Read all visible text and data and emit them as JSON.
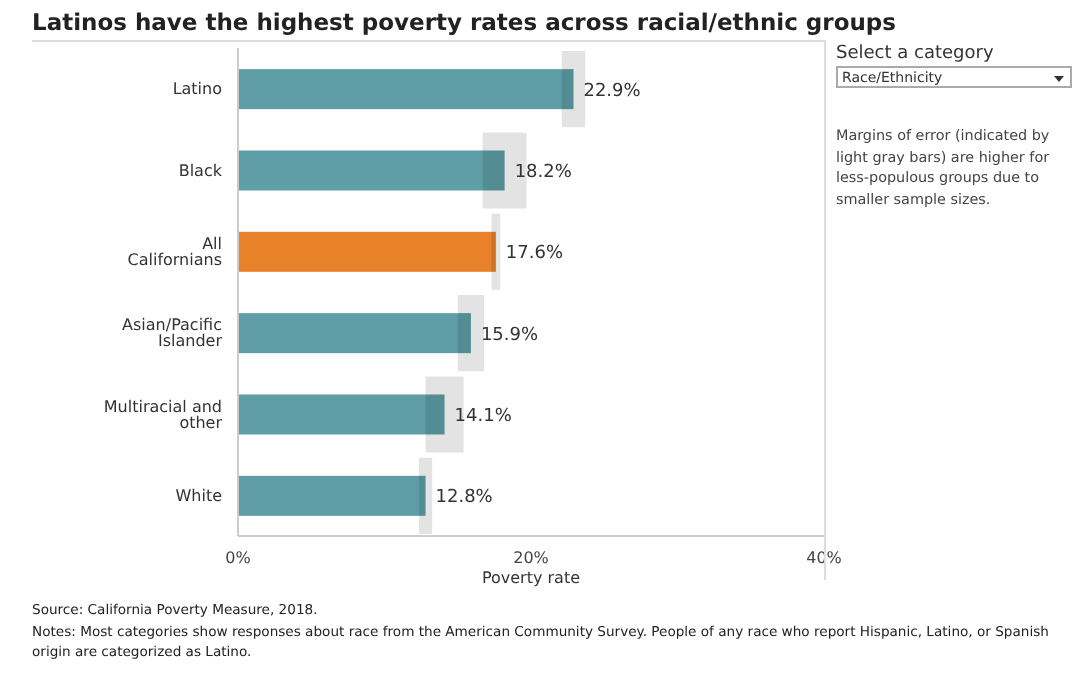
{
  "chart_data": {
    "type": "bar",
    "orientation": "horizontal",
    "title": "Latinos have the highest poverty rates across racial/ethnic groups",
    "xlabel": "Poverty rate",
    "categories": [
      "Latino",
      "Black",
      "All Californians",
      "Asian/Pacific Islander",
      "Multiracial and other",
      "White"
    ],
    "values": [
      22.9,
      18.2,
      17.6,
      15.9,
      14.1,
      12.8
    ],
    "colors": [
      "#5f9ea6",
      "#5f9ea6",
      "#e8822a",
      "#5f9ea6",
      "#5f9ea6",
      "#5f9ea6"
    ],
    "errors": [
      0.8,
      1.5,
      0.3,
      0.9,
      1.3,
      0.45
    ],
    "value_labels": [
      "22.9%",
      "18.2%",
      "17.6%",
      "15.9%",
      "14.1%",
      "12.8%"
    ],
    "xlim": [
      0,
      40
    ],
    "xticks": [
      {
        "value": 0,
        "label": "0%"
      },
      {
        "value": 20,
        "label": "20%"
      },
      {
        "value": 40,
        "label": "40%"
      }
    ],
    "grid": false,
    "legend": false,
    "annotations": [
      "Select a category",
      "Race/Ethnicity",
      "Margins of error (indicated by light gray bars) are higher for less-populous groups due to smaller sample sizes.",
      "Source: California Poverty Measure, 2018.",
      "Notes: Most categories show responses about race from the American Community Survey. People of any race who report Hispanic, Latino, or Spanish origin are categorized as Latino."
    ]
  }
}
